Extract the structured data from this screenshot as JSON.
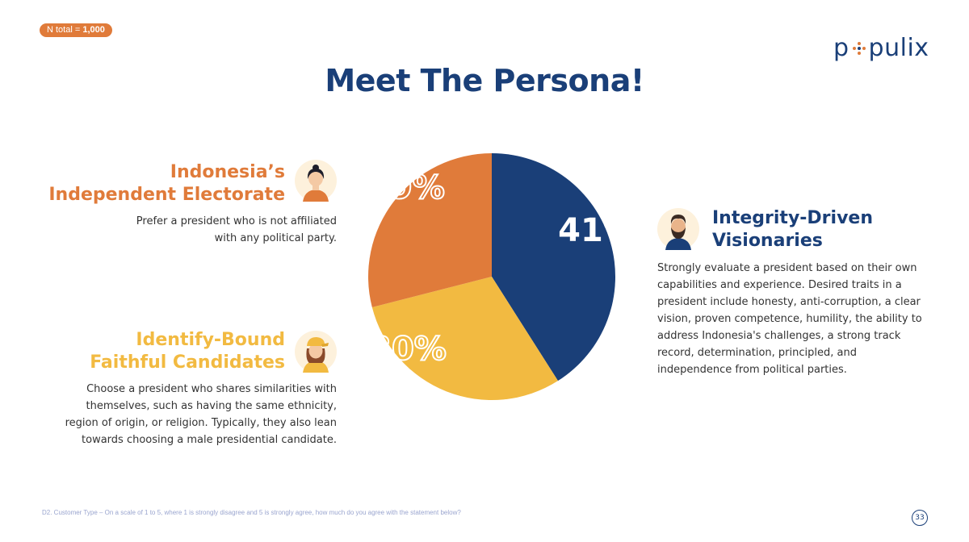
{
  "badge": {
    "prefix": "N total = ",
    "value": "1,000",
    "color": "#e07b3a"
  },
  "logo": {
    "before": "p",
    "after": "pulix",
    "color": "#1a3f78"
  },
  "title": "Meet The Persona!",
  "colors": {
    "navy": "#1a3f78",
    "orange": "#e07b3a",
    "yellow": "#f2ba41"
  },
  "personas": {
    "independent": {
      "title_line1": "Indonesia’s",
      "title_line2": "Independent Electorate",
      "desc_line1": "Prefer a president who is not affiliated",
      "desc_line2": "with any political party."
    },
    "identity": {
      "title_line1": "Identify-Bound",
      "title_line2": "Faithful Candidates",
      "desc_line1": "Choose a president who shares similarities with",
      "desc_line2": "themselves, such as having the same ethnicity,",
      "desc_line3": "region of origin, or religion. Typically, they also lean",
      "desc_line4": "towards choosing a male presidential candidate."
    },
    "integrity": {
      "title_line1": "Integrity-Driven",
      "title_line2": "Visionaries",
      "desc_line1": "Strongly evaluate a president based on their own",
      "desc_line2": "capabilities and experience. Desired traits in a",
      "desc_line3": "president include honesty, anti-corruption, a clear",
      "desc_line4": "vision, proven competence, humility, the ability to",
      "desc_line5": "address Indonesia's challenges, a strong track",
      "desc_line6": "record, determination, principled, and",
      "desc_line7": "independence from political parties."
    }
  },
  "chart_data": {
    "type": "pie",
    "slices": [
      {
        "label": "Integrity-Driven Visionaries",
        "value": 41,
        "display": "41%",
        "color": "#1a3f78"
      },
      {
        "label": "Identify-Bound Faithful Candidates",
        "value": 30,
        "display": "30%",
        "color": "#f2ba41"
      },
      {
        "label": "Indonesia’s Independent Electorate",
        "value": 29,
        "display": "29%",
        "color": "#e07b3a"
      }
    ],
    "start_angle_deg": 0,
    "direction": "clockwise"
  },
  "footnote": "D2. Customer Type – On a scale of 1 to 5, where 1 is strongly disagree and 5 is strongly agree, how much do you agree with the statement below?",
  "page_number": "33"
}
